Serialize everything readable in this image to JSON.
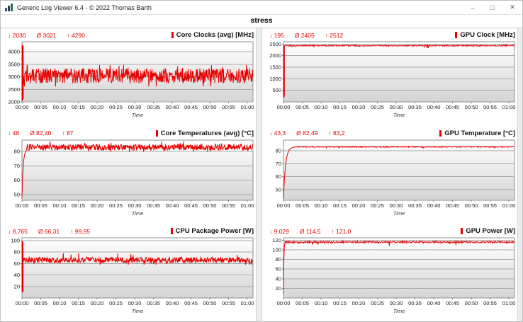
{
  "window": {
    "title": "Generic Log Viewer 6.4 - © 2022 Thomas Barth",
    "controls": {
      "minimize": "–",
      "maximize": "□",
      "close": "✕"
    }
  },
  "tab": {
    "label": "stress"
  },
  "glyphs": {
    "min": "↓",
    "avg": "Ø",
    "max": "↑"
  },
  "colors": {
    "series_red": "#e60000",
    "stat_text": "#e60000",
    "gridline": "#a8a8a8",
    "plot_border": "#8f8f8f"
  },
  "axis": {
    "time_label": "Time",
    "x_domain_minutes": [
      0,
      61.5
    ],
    "xticks": [
      "00:00",
      "00:05",
      "00:10",
      "00:15",
      "00:20",
      "00:25",
      "00:30",
      "00:35",
      "00:40",
      "00:45",
      "00:50",
      "00:55",
      "01:00"
    ]
  },
  "chart_data": [
    {
      "id": "core-clocks",
      "type": "line",
      "title": "Core Clocks (avg) [MHz]",
      "xlabel": "Time",
      "color": "#e60000",
      "stats": {
        "min": "2030",
        "avg": "3021",
        "max": "4290"
      },
      "ylim": [
        2000,
        4400
      ],
      "yticks": [
        2000,
        2500,
        3000,
        3500,
        4000
      ],
      "xticks": [
        "00:00",
        "00:05",
        "00:10",
        "00:15",
        "00:20",
        "00:25",
        "00:30",
        "00:35",
        "00:40",
        "00:45",
        "00:50",
        "00:55",
        "01:00"
      ],
      "series": {
        "name": "Core Clocks (avg)",
        "segments": [
          {
            "type": "burst",
            "t0": 0,
            "t1": 0.35,
            "min": 2030,
            "max": 4290
          },
          {
            "type": "noise",
            "t0": 0.35,
            "t1": 61.5,
            "mean": 3040,
            "amp": 300,
            "min": 2620,
            "max": 3470
          }
        ]
      }
    },
    {
      "id": "gpu-clock",
      "type": "line",
      "title": "GPU Clock [MHz]",
      "xlabel": "Time",
      "color": "#e60000",
      "stats": {
        "min": "195",
        "avg": "2405",
        "max": "2512"
      },
      "ylim": [
        0,
        2600
      ],
      "yticks": [
        500,
        1000,
        1500,
        2000,
        2500
      ],
      "xticks": [
        "00:00",
        "00:05",
        "00:10",
        "00:15",
        "00:20",
        "00:25",
        "00:30",
        "00:35",
        "00:40",
        "00:45",
        "00:50",
        "00:55",
        "01:00"
      ],
      "series": {
        "name": "GPU Clock",
        "segments": [
          {
            "type": "burst",
            "t0": 0,
            "t1": 0.25,
            "min": 195,
            "max": 2460
          },
          {
            "type": "noise",
            "t0": 0.25,
            "t1": 61.5,
            "mean": 2430,
            "amp": 22,
            "min": 2310,
            "max": 2512,
            "dips": {
              "prob": 0.006,
              "to": 2330
            }
          }
        ]
      }
    },
    {
      "id": "core-temperatures",
      "type": "line",
      "title": "Core Temperatures (avg) [°C]",
      "xlabel": "Time",
      "color": "#e60000",
      "stats": {
        "min": "48",
        "avg": "82,40",
        "max": "87"
      },
      "ylim": [
        46,
        88
      ],
      "yticks": [
        50,
        60,
        70,
        80
      ],
      "xticks": [
        "00:00",
        "00:05",
        "00:10",
        "00:15",
        "00:20",
        "00:25",
        "00:30",
        "00:35",
        "00:40",
        "00:45",
        "00:50",
        "00:55",
        "01:00"
      ],
      "series": {
        "name": "Core Temperatures (avg)",
        "segments": [
          {
            "type": "rise",
            "t0": 0,
            "t1": 1.2,
            "from": 48,
            "to": 81.5,
            "tau": 0.32
          },
          {
            "type": "noise",
            "t0": 1.2,
            "t1": 61.5,
            "mean": 83,
            "amp": 2.2,
            "min": 79.8,
            "max": 87
          }
        ]
      }
    },
    {
      "id": "gpu-temperature",
      "type": "line",
      "title": "GPU Temperature [°C]",
      "xlabel": "Time",
      "color": "#e60000",
      "stats": {
        "min": "43,3",
        "avg": "82,49",
        "max": "83,2"
      },
      "ylim": [
        42,
        88
      ],
      "yticks": [
        50,
        60,
        70,
        80
      ],
      "xticks": [
        "00:00",
        "00:05",
        "00:10",
        "00:15",
        "00:20",
        "00:25",
        "00:30",
        "00:35",
        "00:40",
        "00:45",
        "00:50",
        "00:55",
        "01:00"
      ],
      "series": {
        "name": "GPU Temperature",
        "segments": [
          {
            "type": "rise",
            "t0": 0,
            "t1": 3,
            "from": 43.3,
            "to": 82.8,
            "tau": 0.55
          },
          {
            "type": "noise",
            "t0": 3,
            "t1": 61.5,
            "mean": 82.9,
            "amp": 0.4,
            "min": 81.8,
            "max": 83.2
          }
        ]
      }
    },
    {
      "id": "cpu-package-power",
      "type": "line",
      "title": "CPU Package Power [W]",
      "xlabel": "Time",
      "color": "#e60000",
      "stats": {
        "min": "8,765",
        "avg": "66,31",
        "max": "99,95"
      },
      "ylim": [
        0,
        105
      ],
      "yticks": [
        20,
        40,
        60,
        80,
        100
      ],
      "xticks": [
        "00:00",
        "00:05",
        "00:10",
        "00:15",
        "00:20",
        "00:25",
        "00:30",
        "00:35",
        "00:40",
        "00:45",
        "00:50",
        "00:55",
        "01:00"
      ],
      "series": {
        "name": "CPU Package Power",
        "segments": [
          {
            "type": "burst",
            "t0": 0,
            "t1": 0.3,
            "min": 8.765,
            "max": 99.95
          },
          {
            "type": "noise",
            "t0": 0.3,
            "t1": 61.5,
            "mean": 66.3,
            "amp": 5,
            "min": 58,
            "max": 78
          }
        ]
      }
    },
    {
      "id": "gpu-power",
      "type": "line",
      "title": "GPU Power [W]",
      "xlabel": "Time",
      "color": "#e60000",
      "stats": {
        "min": "9,029",
        "avg": "114,5",
        "max": "121,0"
      },
      "ylim": [
        0,
        125
      ],
      "yticks": [
        20,
        40,
        60,
        80,
        100,
        120
      ],
      "xticks": [
        "00:00",
        "00:05",
        "00:10",
        "00:15",
        "00:20",
        "00:25",
        "00:30",
        "00:35",
        "00:40",
        "00:45",
        "00:50",
        "00:55",
        "01:00"
      ],
      "series": {
        "name": "GPU Power",
        "segments": [
          {
            "type": "rise",
            "t0": 0,
            "t1": 0.4,
            "from": 9.029,
            "to": 115.5,
            "tau": 0.1
          },
          {
            "type": "noise",
            "t0": 0.4,
            "t1": 61.5,
            "mean": 116,
            "amp": 1.6,
            "min": 107,
            "max": 121,
            "dips": {
              "prob": 0.01,
              "to": 108
            }
          }
        ]
      }
    }
  ]
}
